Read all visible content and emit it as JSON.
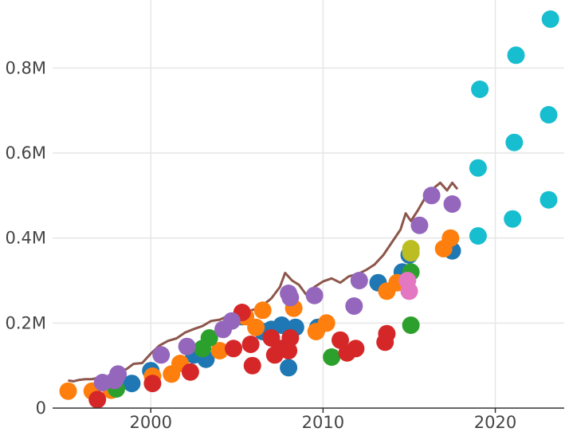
{
  "chart_data": {
    "type": "scatter",
    "title": "",
    "xlabel": "",
    "ylabel": "",
    "xlim": [
      1994.3,
      2024
    ],
    "ylim": [
      0,
      0.96
    ],
    "grid": true,
    "x_ticks": [
      {
        "value": 2000,
        "label": "2000"
      },
      {
        "value": 2010,
        "label": "2010"
      },
      {
        "value": 2020,
        "label": "2020"
      }
    ],
    "y_ticks": [
      {
        "value": 0,
        "label": "0"
      },
      {
        "value": 0.2,
        "label": "0.2M"
      },
      {
        "value": 0.4,
        "label": "0.4M"
      },
      {
        "value": 0.6,
        "label": "0.6M"
      },
      {
        "value": 0.8,
        "label": "0.8M"
      }
    ],
    "y_unit_multiplier": 1000000,
    "line_series": [
      {
        "color": "#8c564b",
        "points": [
          [
            1995.2,
            0.065
          ],
          [
            1995.5,
            0.063
          ],
          [
            1995.8,
            0.066
          ],
          [
            1996.2,
            0.068
          ],
          [
            1996.6,
            0.068
          ],
          [
            1997.0,
            0.072
          ],
          [
            1997.4,
            0.074
          ],
          [
            1997.8,
            0.076
          ],
          [
            1998.2,
            0.084
          ],
          [
            1998.6,
            0.092
          ],
          [
            1999.0,
            0.104
          ],
          [
            1999.5,
            0.106
          ],
          [
            2000.0,
            0.128
          ],
          [
            2000.5,
            0.147
          ],
          [
            2001.0,
            0.158
          ],
          [
            2001.5,
            0.164
          ],
          [
            2002.0,
            0.178
          ],
          [
            2002.5,
            0.186
          ],
          [
            2003.0,
            0.193
          ],
          [
            2003.5,
            0.205
          ],
          [
            2004.0,
            0.208
          ],
          [
            2004.5,
            0.217
          ],
          [
            2005.0,
            0.224
          ],
          [
            2005.5,
            0.226
          ],
          [
            2006.0,
            0.232
          ],
          [
            2006.5,
            0.242
          ],
          [
            2007.0,
            0.258
          ],
          [
            2007.5,
            0.285
          ],
          [
            2007.8,
            0.318
          ],
          [
            2008.2,
            0.3
          ],
          [
            2008.6,
            0.29
          ],
          [
            2009.0,
            0.268
          ],
          [
            2009.5,
            0.285
          ],
          [
            2010.0,
            0.298
          ],
          [
            2010.5,
            0.305
          ],
          [
            2011.0,
            0.295
          ],
          [
            2011.5,
            0.31
          ],
          [
            2012.0,
            0.315
          ],
          [
            2012.5,
            0.325
          ],
          [
            2013.0,
            0.338
          ],
          [
            2013.5,
            0.36
          ],
          [
            2014.0,
            0.39
          ],
          [
            2014.5,
            0.42
          ],
          [
            2014.8,
            0.458
          ],
          [
            2015.1,
            0.44
          ],
          [
            2015.5,
            0.465
          ],
          [
            2016.0,
            0.5
          ],
          [
            2016.5,
            0.52
          ],
          [
            2016.8,
            0.53
          ],
          [
            2017.2,
            0.512
          ],
          [
            2017.5,
            0.53
          ],
          [
            2017.8,
            0.515
          ]
        ]
      }
    ],
    "series": [
      {
        "color": "#1f77b4",
        "points": [
          [
            1997.8,
            0.05
          ],
          [
            1998.9,
            0.058
          ],
          [
            2000.0,
            0.088
          ],
          [
            2002.5,
            0.125
          ],
          [
            2003.2,
            0.115
          ],
          [
            2005.3,
            0.215
          ],
          [
            2006.5,
            0.18
          ],
          [
            2007.0,
            0.185
          ],
          [
            2007.6,
            0.195
          ],
          [
            2008.0,
            0.095
          ],
          [
            2008.4,
            0.19
          ],
          [
            2009.7,
            0.19
          ],
          [
            2013.2,
            0.295
          ],
          [
            2014.6,
            0.32
          ],
          [
            2015.0,
            0.36
          ],
          [
            2017.5,
            0.37
          ]
        ]
      },
      {
        "color": "#ff7f0e",
        "points": [
          [
            1995.2,
            0.04
          ],
          [
            1996.6,
            0.04
          ],
          [
            1997.7,
            0.042
          ],
          [
            2000.1,
            0.075
          ],
          [
            2001.2,
            0.08
          ],
          [
            2001.7,
            0.105
          ],
          [
            2004.0,
            0.135
          ],
          [
            2005.5,
            0.215
          ],
          [
            2006.1,
            0.19
          ],
          [
            2006.5,
            0.23
          ],
          [
            2008.3,
            0.235
          ],
          [
            2009.6,
            0.18
          ],
          [
            2010.2,
            0.2
          ],
          [
            2013.7,
            0.275
          ],
          [
            2014.3,
            0.295
          ],
          [
            2017.0,
            0.375
          ],
          [
            2017.4,
            0.4
          ]
        ]
      },
      {
        "color": "#2ca02c",
        "points": [
          [
            1998.0,
            0.045
          ],
          [
            2003.0,
            0.14
          ],
          [
            2003.4,
            0.165
          ],
          [
            2010.5,
            0.12
          ],
          [
            2015.1,
            0.32
          ],
          [
            2015.1,
            0.195
          ]
        ]
      },
      {
        "color": "#d62728",
        "points": [
          [
            1996.9,
            0.02
          ],
          [
            2000.1,
            0.058
          ],
          [
            2002.3,
            0.085
          ],
          [
            2004.8,
            0.14
          ],
          [
            2005.3,
            0.225
          ],
          [
            2005.8,
            0.15
          ],
          [
            2005.9,
            0.1
          ],
          [
            2007.0,
            0.165
          ],
          [
            2007.2,
            0.125
          ],
          [
            2007.6,
            0.14
          ],
          [
            2008.0,
            0.135
          ],
          [
            2008.1,
            0.165
          ],
          [
            2011.0,
            0.16
          ],
          [
            2011.4,
            0.13
          ],
          [
            2011.9,
            0.14
          ],
          [
            2013.6,
            0.155
          ],
          [
            2013.7,
            0.175
          ]
        ]
      },
      {
        "color": "#9467bd",
        "points": [
          [
            1997.2,
            0.06
          ],
          [
            1997.9,
            0.065
          ],
          [
            1998.1,
            0.08
          ],
          [
            2000.6,
            0.125
          ],
          [
            2002.1,
            0.145
          ],
          [
            2004.2,
            0.185
          ],
          [
            2004.7,
            0.205
          ],
          [
            2008.0,
            0.27
          ],
          [
            2008.1,
            0.26
          ],
          [
            2009.5,
            0.265
          ],
          [
            2011.8,
            0.24
          ],
          [
            2012.1,
            0.3
          ],
          [
            2015.6,
            0.43
          ],
          [
            2016.3,
            0.5
          ],
          [
            2017.5,
            0.48
          ]
        ]
      },
      {
        "color": "#e377c2",
        "points": [
          [
            2014.9,
            0.3
          ],
          [
            2015.0,
            0.275
          ]
        ]
      },
      {
        "color": "#bcbd22",
        "points": [
          [
            2015.1,
            0.375
          ],
          [
            2015.1,
            0.365
          ]
        ]
      },
      {
        "color": "#17becf",
        "points": [
          [
            2019.0,
            0.405
          ],
          [
            2019.0,
            0.565
          ],
          [
            2019.1,
            0.75
          ],
          [
            2021.0,
            0.445
          ],
          [
            2021.1,
            0.625
          ],
          [
            2021.2,
            0.83
          ],
          [
            2023.1,
            0.49
          ],
          [
            2023.1,
            0.69
          ],
          [
            2023.2,
            0.915
          ]
        ]
      }
    ]
  }
}
